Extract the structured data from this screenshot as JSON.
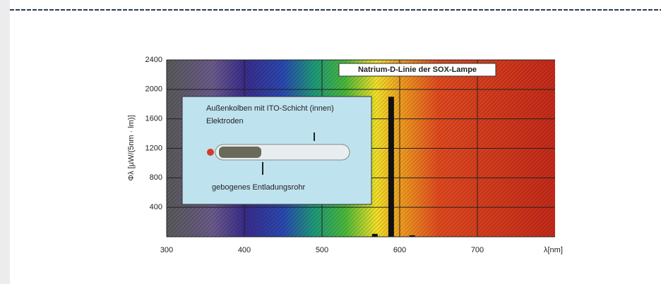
{
  "chart_data": {
    "type": "bar",
    "title": "Natrium-D-Linie der SOX-Lampe",
    "xlabel": "λ[nm]",
    "ylabel": "Φλ [µW/(5nm · lm)]",
    "x": [
      568,
      589,
      616
    ],
    "values": [
      40,
      1900,
      20
    ],
    "color": "#111111",
    "xlim": [
      300,
      800
    ],
    "ylim": [
      0,
      2400
    ],
    "xticks": [
      300,
      400,
      500,
      600,
      700
    ],
    "yticks": [
      400,
      800,
      1200,
      1600,
      2000,
      2400
    ],
    "grid": true,
    "annotations": [
      "Außenkolben mit ITO-Schicht (innen)",
      "Elektroden",
      "gebogenes Entladungsrohr"
    ]
  }
}
